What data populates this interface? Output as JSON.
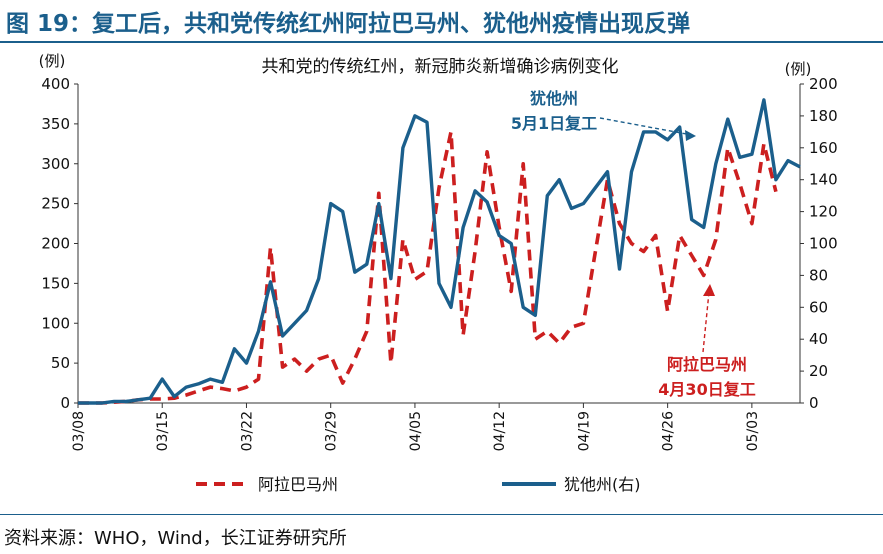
{
  "figure": {
    "title": "图 19：复工后，共和党传统红州阿拉巴马州、犹他州疫情出现反弹",
    "source": "资料来源：WHO，Wind，长江证券研究所"
  },
  "chart_data": {
    "type": "line",
    "title": "共和党的传统红州，新冠肺炎新增确诊病例变化",
    "ylabel_left": "(例)",
    "ylabel_right": "(例)",
    "ylim_left": [
      0,
      400
    ],
    "ylim_right": [
      0,
      200
    ],
    "yticks_left": [
      0,
      50,
      100,
      150,
      200,
      250,
      300,
      350,
      400
    ],
    "yticks_right": [
      0,
      20,
      40,
      60,
      80,
      100,
      120,
      140,
      160,
      180,
      200
    ],
    "x_start": "03/08",
    "xtick_labels": [
      "03/08",
      "03/15",
      "03/22",
      "03/29",
      "04/05",
      "04/12",
      "04/19",
      "04/26",
      "05/03"
    ],
    "xticks_day_index": [
      0,
      7,
      14,
      21,
      28,
      35,
      42,
      49,
      56
    ],
    "legend_position": "bottom",
    "grid": false,
    "series": [
      {
        "name": "阿拉巴马州",
        "axis": "left",
        "style": "dashed",
        "color": "#cc1f1f",
        "values": [
          0,
          0,
          0,
          1,
          2,
          4,
          5,
          5,
          6,
          10,
          15,
          20,
          18,
          15,
          20,
          30,
          195,
          45,
          55,
          40,
          55,
          60,
          25,
          55,
          90,
          263,
          50,
          205,
          155,
          165,
          270,
          340,
          85,
          190,
          315,
          220,
          140,
          300,
          80,
          90,
          75,
          95,
          100,
          190,
          280,
          225,
          200,
          190,
          210,
          115,
          210,
          185,
          160,
          205,
          320,
          275,
          225,
          325,
          265
        ],
        "values_note_ignore": null
      },
      {
        "name": "犹他州(右)",
        "axis": "right",
        "style": "solid",
        "color": "#1b5f8c",
        "values": [
          0,
          0,
          0,
          1,
          1,
          2,
          3,
          15,
          4,
          10,
          12,
          15,
          13,
          34,
          25,
          45,
          76,
          42,
          50,
          58,
          78,
          125,
          120,
          82,
          87,
          125,
          78,
          160,
          180,
          176,
          75,
          60,
          110,
          133,
          126,
          105,
          100,
          60,
          55,
          130,
          140,
          122,
          125,
          135,
          145,
          84,
          145,
          170,
          170,
          165,
          173,
          115,
          110,
          150,
          178,
          154,
          156,
          190,
          140,
          152,
          148
        ]
      }
    ],
    "annotations": [
      {
        "lines": [
          "犹他州",
          "5月1日复工"
        ],
        "color": "#1b5f8c"
      },
      {
        "lines": [
          "阿拉巴马州",
          "4月30日复工"
        ],
        "color": "#cc1f1f"
      }
    ]
  }
}
